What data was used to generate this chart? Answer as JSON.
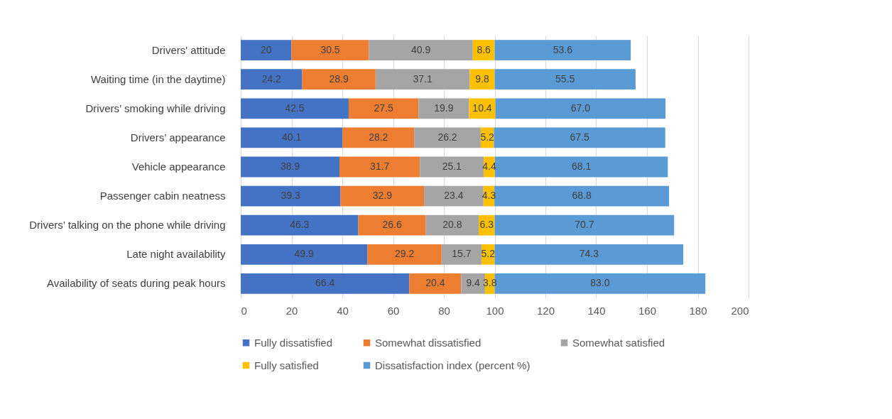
{
  "chart_data": {
    "type": "bar",
    "orientation": "horizontal",
    "stacked": true,
    "categories": [
      "Drivers' attitude",
      "Waiting time (in the daytime)",
      "Drivers’ smoking while driving",
      "Drivers’ appearance",
      "Vehicle appearance",
      "Passenger cabin neatness",
      "Drivers’ talking on the phone while driving",
      "Late night availability",
      "Availability of seats during peak hours"
    ],
    "series": [
      {
        "name": "Fully dissatisfied",
        "color": "#4472c4",
        "values": [
          20,
          24.2,
          42.5,
          40.1,
          38.9,
          39.3,
          46.3,
          49.9,
          66.4
        ],
        "value_labels": [
          "20",
          "24.2",
          "42.5",
          "40.1",
          "38.9",
          "39.3",
          "46.3",
          "49.9",
          "66.4"
        ]
      },
      {
        "name": "Somewhat dissatisfied",
        "color": "#ed7d31",
        "values": [
          30.5,
          28.9,
          27.5,
          28.2,
          31.7,
          32.9,
          26.6,
          29.2,
          20.4
        ],
        "value_labels": [
          "30.5",
          "28.9",
          "27.5",
          "28.2",
          "31.7",
          "32.9",
          "26.6",
          "29.2",
          "20.4"
        ]
      },
      {
        "name": "Somewhat satisfied",
        "color": "#a5a5a5",
        "values": [
          40.9,
          37.1,
          19.9,
          26.2,
          25.1,
          23.4,
          20.8,
          15.7,
          9.4
        ],
        "value_labels": [
          "40.9",
          "37.1",
          "19.9",
          "26.2",
          "25.1",
          "23.4",
          "20.8",
          "15.7",
          "9.4"
        ]
      },
      {
        "name": "Fully satisfied",
        "color": "#ffc000",
        "values": [
          8.6,
          9.8,
          10.4,
          5.2,
          4.4,
          4.3,
          6.3,
          5.2,
          3.8
        ],
        "value_labels": [
          "8.6",
          "9.8",
          "10.4",
          "5.2",
          "4.4",
          "4.3",
          "6.3",
          "5.2",
          "3.8"
        ]
      },
      {
        "name": "Dissatisfaction index (percent %)",
        "color": "#5b9bd5",
        "values": [
          53.6,
          55.5,
          67.0,
          67.5,
          68.1,
          68.8,
          70.7,
          74.3,
          83.0
        ],
        "value_labels": [
          "53.6",
          "55.5",
          "67.0",
          "67.5",
          "68.1",
          "68.8",
          "70.7",
          "74.3",
          "83.0"
        ]
      }
    ],
    "xlim": [
      0,
      200
    ],
    "xticks": [
      0,
      20,
      40,
      60,
      80,
      100,
      120,
      140,
      160,
      180,
      200
    ],
    "grid": "x",
    "legend": "bottom"
  }
}
